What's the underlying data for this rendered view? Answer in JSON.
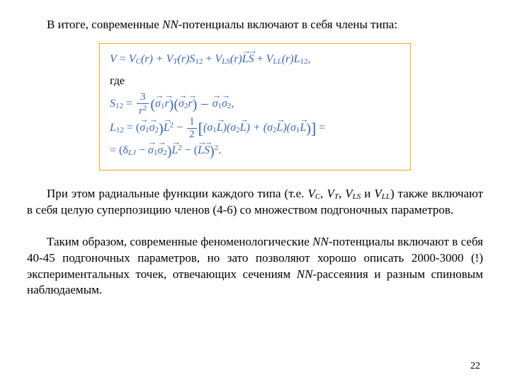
{
  "intro": {
    "prefix": "В итоге, современные ",
    "nn": "NN",
    "suffix": "-потенциалы включают в себя члены типа:"
  },
  "formula": {
    "line1": {
      "V": "V",
      "eq": " = ",
      "Vc": "V",
      "Vc_sub": "C",
      "r1": "(r) + ",
      "Vt": "V",
      "Vt_sub": "T",
      "r2": "(r)S",
      "S12a": "12",
      "plus1": " + ",
      "Vls": "V",
      "Vls_sub": "LS",
      "r3": "(r)",
      "L": "L",
      "S": "S",
      "plus2": " + ",
      "Vll": "V",
      "Vll_sub": "LL",
      "r4": "(r)L",
      "L12a": "12",
      "comma": ","
    },
    "where": "где",
    "line2": {
      "S": "S",
      "S12": "12",
      "eq": " = ",
      "num": "3",
      "den": "r",
      "den_sup": "2",
      "open": "(",
      "s1": "σ",
      "s1sub": "1",
      "r1": "r",
      "close": ")(",
      "s2": "σ",
      "s2sub": "2",
      "r2": "r",
      "close2": ") − ",
      "s1b": "σ",
      "s1bsub": "1",
      "s2b": "σ",
      "s2bsub": "2",
      "end": ","
    },
    "line3": {
      "L": "L",
      "L12": "12",
      "eq": " = (",
      "s1": "σ",
      "s1sub": "1",
      "s2": "σ",
      "s2sub": "2",
      "close": ")",
      "Lsq": "L",
      "sq": "2",
      "minus": " − ",
      "half_n": "1",
      "half_d": "2",
      "open": "[",
      "p1a": "(σ",
      "p1a_sub": "1",
      "L1": "L",
      "p1b": ")(σ",
      "p1b_sub": "2",
      "L2": "L",
      "p1c": ") + (σ",
      "p2a_sub": "2",
      "L3": "L",
      "p2b": ")(σ",
      "p2b_sub": "1",
      "L4": "L",
      "p2c": ")",
      "close2": "]",
      "eqend": " ="
    },
    "line4": {
      "open": "= (δ",
      "dsub": "LJ",
      "mid1": " − ",
      "s1": "σ",
      "s1sub": "1",
      "s2": "σ",
      "s2sub": "2",
      "close": ")",
      "L": "L",
      "sq": "2",
      "mid2": " − (",
      "L2": "L",
      "S": "S",
      "close2": ")",
      "sq2": "2",
      "dot": "."
    }
  },
  "para1": {
    "prefix": "При этом радиальные функции каждого типа (т.е. ",
    "Vc": "V",
    "Vc_sub": "C",
    "c1": ", ",
    "Vt": "V",
    "Vt_sub": "T",
    "c2": ", ",
    "Vls": "V",
    "Vls_sub": "LS",
    "c3": " и ",
    "Vll": "V",
    "Vll_sub": "LL",
    "suffix": ") также включают в себя целую суперпозицию членов (4-6) со множеством подгоночных параметров."
  },
  "para2": {
    "prefix": "Таким образом, современные феноменологические ",
    "nn": "NN",
    "mid": "-потенциалы включают в себя 40-45 подгоночных параметров, но зато позволяют хорошо описать 2000-3000 (!) экспериментальных точек, отвечающих сечениям ",
    "nn2": "NN",
    "suffix": "-рассеяния и разным спиновым наблюдаемым."
  },
  "page_number": "22",
  "colors": {
    "formula_text": "#3b66b0",
    "box_border": "#f2a813",
    "text": "#000000",
    "bg": "#ffffff"
  }
}
